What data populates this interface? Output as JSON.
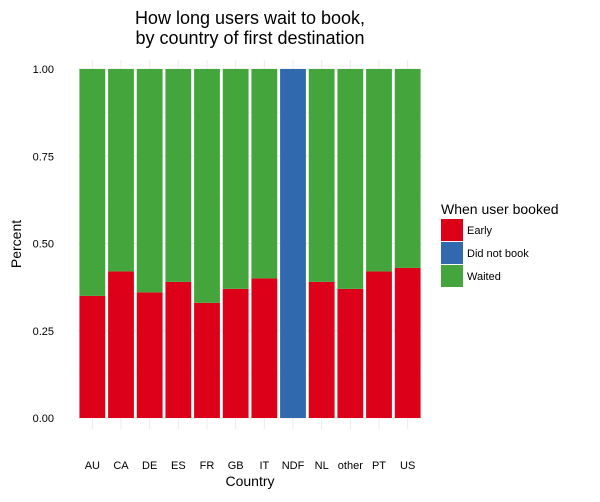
{
  "chart_data": {
    "type": "bar",
    "stacked": true,
    "title": "How long users wait to book,\nby country of first destination",
    "xlabel": "Country",
    "ylabel": "Percent",
    "ylim": [
      0,
      1
    ],
    "yticks": [
      "0.00",
      "0.25",
      "0.50",
      "0.75",
      "1.00"
    ],
    "grid": true,
    "legend_position": "right",
    "legend_title": "When user booked",
    "categories": [
      "AU",
      "CA",
      "DE",
      "ES",
      "FR",
      "GB",
      "IT",
      "NDF",
      "NL",
      "other",
      "PT",
      "US"
    ],
    "series": [
      {
        "name": "Early",
        "color": "#DC0019",
        "values": [
          0.35,
          0.42,
          0.36,
          0.39,
          0.33,
          0.37,
          0.4,
          0.0,
          0.39,
          0.37,
          0.42,
          0.43
        ]
      },
      {
        "name": "Did not book",
        "color": "#3069AD",
        "values": [
          0.0,
          0.0,
          0.0,
          0.0,
          0.0,
          0.0,
          0.0,
          1.0,
          0.0,
          0.0,
          0.0,
          0.0
        ]
      },
      {
        "name": "Waited",
        "color": "#43A53C",
        "values": [
          0.65,
          0.58,
          0.64,
          0.61,
          0.67,
          0.63,
          0.6,
          0.0,
          0.61,
          0.63,
          0.58,
          0.57
        ]
      }
    ]
  }
}
